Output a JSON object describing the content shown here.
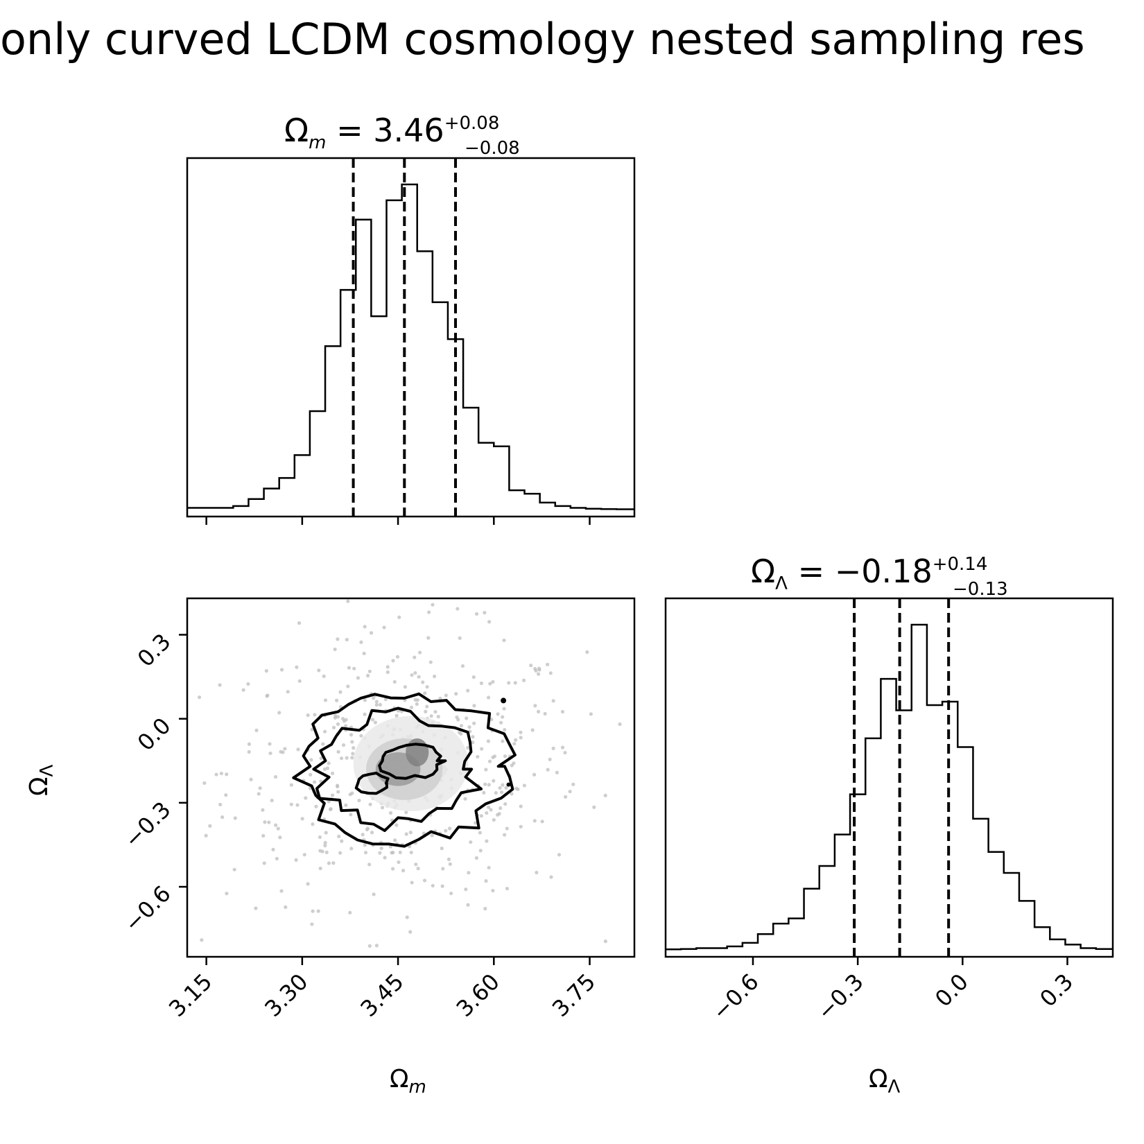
{
  "figure": {
    "suptitle": "only curved LCDM cosmology nested sampling res"
  },
  "chart_data": {
    "type": "corner",
    "parameters": [
      {
        "symbol": "Ω",
        "subscript": "m",
        "axis_label": "Ωm",
        "median": "3.46",
        "upper_err": "+0.08",
        "lower_err": "−0.08",
        "quantiles": [
          3.38,
          3.46,
          3.54
        ],
        "range": [
          3.12,
          3.82
        ],
        "ticks": [
          3.15,
          3.3,
          3.45,
          3.6,
          3.75
        ],
        "tick_labels": [
          "3.15",
          "3.30",
          "3.45",
          "3.60",
          "3.75"
        ],
        "histogram": {
          "bin_edges": [
            3.12,
            3.144,
            3.168,
            3.192,
            3.216,
            3.24,
            3.264,
            3.288,
            3.312,
            3.336,
            3.36,
            3.384,
            3.408,
            3.432,
            3.456,
            3.48,
            3.504,
            3.528,
            3.552,
            3.576,
            3.6,
            3.624,
            3.648,
            3.672,
            3.696,
            3.72,
            3.744,
            3.768,
            3.792,
            3.82
          ],
          "counts": [
            1,
            1,
            1,
            2,
            6,
            12,
            18,
            31,
            56,
            93,
            125,
            165,
            110,
            176,
            185,
            147,
            118,
            97,
            58,
            38,
            36,
            11,
            9,
            4,
            2,
            1,
            0.5,
            0.3,
            0.2
          ]
        }
      },
      {
        "symbol": "Ω",
        "subscript": "Λ",
        "axis_label": "ΩΛ",
        "median": "−0.18",
        "upper_err": "+0.14",
        "lower_err": "−0.13",
        "quantiles": [
          -0.31,
          -0.18,
          -0.04
        ],
        "range": [
          -0.85,
          0.43
        ],
        "ticks": [
          -0.6,
          -0.3,
          0.0,
          0.3
        ],
        "tick_labels": [
          "−0.6",
          "−0.3",
          "0.0",
          "0.3"
        ],
        "histogram": {
          "bin_edges": [
            -0.85,
            -0.806,
            -0.762,
            -0.718,
            -0.674,
            -0.63,
            -0.586,
            -0.542,
            -0.498,
            -0.454,
            -0.41,
            -0.366,
            -0.322,
            -0.278,
            -0.234,
            -0.19,
            -0.146,
            -0.102,
            -0.058,
            -0.014,
            0.03,
            0.074,
            0.118,
            0.162,
            0.206,
            0.25,
            0.294,
            0.338,
            0.382,
            0.43
          ],
          "counts": [
            0.3,
            0.5,
            1,
            1,
            2,
            4,
            9,
            15,
            18,
            35,
            48,
            66,
            89,
            121,
            155,
            137,
            186,
            140,
            142,
            116,
            75,
            56,
            44,
            28,
            13,
            6,
            3,
            1,
            0.5
          ]
        }
      }
    ],
    "density_2d": {
      "x_param": "Ωm",
      "y_param": "ΩΛ",
      "contour_levels": [
        "inner",
        "middle",
        "outer"
      ]
    }
  }
}
